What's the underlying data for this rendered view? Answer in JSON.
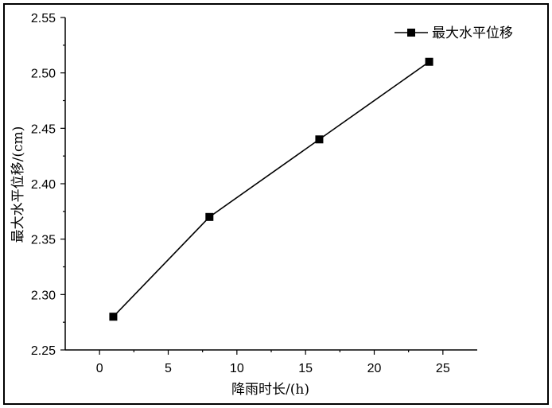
{
  "chart_data": {
    "type": "line",
    "title": "",
    "xlabel": "降雨时长/(h)",
    "ylabel": "最大水平位移/(cm)",
    "xlim": [
      -2.5,
      27.5
    ],
    "ylim": [
      2.25,
      2.55
    ],
    "xticks": [
      0,
      5,
      10,
      15,
      20,
      25
    ],
    "yticks": [
      2.25,
      2.3,
      2.35,
      2.4,
      2.45,
      2.5,
      2.55
    ],
    "xtick_labels": [
      "0",
      "5",
      "10",
      "15",
      "20",
      "25"
    ],
    "ytick_labels": [
      "2.25",
      "2.30",
      "2.35",
      "2.40",
      "2.45",
      "2.50",
      "2.55"
    ],
    "legend_position": "top-right",
    "grid": false,
    "series": [
      {
        "name": "最大水平位移",
        "marker": "square",
        "color": "#000000",
        "x": [
          1,
          8,
          16,
          24
        ],
        "y": [
          2.28,
          2.37,
          2.44,
          2.51
        ]
      }
    ]
  }
}
